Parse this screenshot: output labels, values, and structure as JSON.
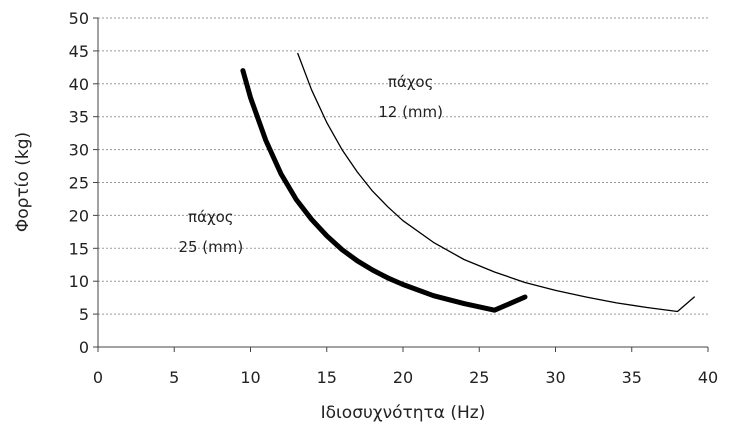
{
  "chart_data": {
    "type": "line",
    "title": "",
    "xlabel": "Ιδιοσυχνότητα (Hz)",
    "ylabel": "Φορτίο (kg)",
    "xlim": [
      0,
      40
    ],
    "ylim": [
      0,
      50
    ],
    "x_ticks": [
      "0",
      "5",
      "10",
      "15",
      "20",
      "25",
      "30",
      "35",
      "40"
    ],
    "y_ticks": [
      "0",
      "5",
      "10",
      "15",
      "20",
      "25",
      "30",
      "35",
      "40",
      "45",
      "50"
    ],
    "grid": true,
    "legend": "none",
    "series": [
      {
        "name": "",
        "line": "thin",
        "x": [
          13.1,
          14,
          15,
          16,
          17,
          18,
          19,
          20,
          22,
          24,
          26,
          28,
          30,
          32,
          34,
          36,
          38,
          39.1
        ],
        "y": [
          44.6,
          39.1,
          34.1,
          30.0,
          26.6,
          23.7,
          21.3,
          19.2,
          15.9,
          13.3,
          11.4,
          9.8,
          8.6,
          7.6,
          6.7,
          6.0,
          5.4,
          7.6
        ]
      },
      {
        "name": "",
        "line": "thick",
        "x": [
          9.5,
          10,
          11,
          12,
          13,
          14,
          15,
          16,
          17,
          18,
          19,
          20,
          22,
          24,
          26,
          28
        ],
        "y": [
          42.0,
          37.9,
          31.4,
          26.3,
          22.4,
          19.4,
          16.9,
          14.8,
          13.1,
          11.7,
          10.5,
          9.5,
          7.8,
          6.6,
          5.6,
          7.6
        ]
      }
    ],
    "annotations": [
      {
        "line1": "πάχος",
        "line2": "12 (mm)",
        "x": 20.5,
        "y": 39.5
      },
      {
        "line1": "πάχος",
        "line2": "25 (mm)",
        "x": 7.4,
        "y": 19.0
      }
    ]
  }
}
